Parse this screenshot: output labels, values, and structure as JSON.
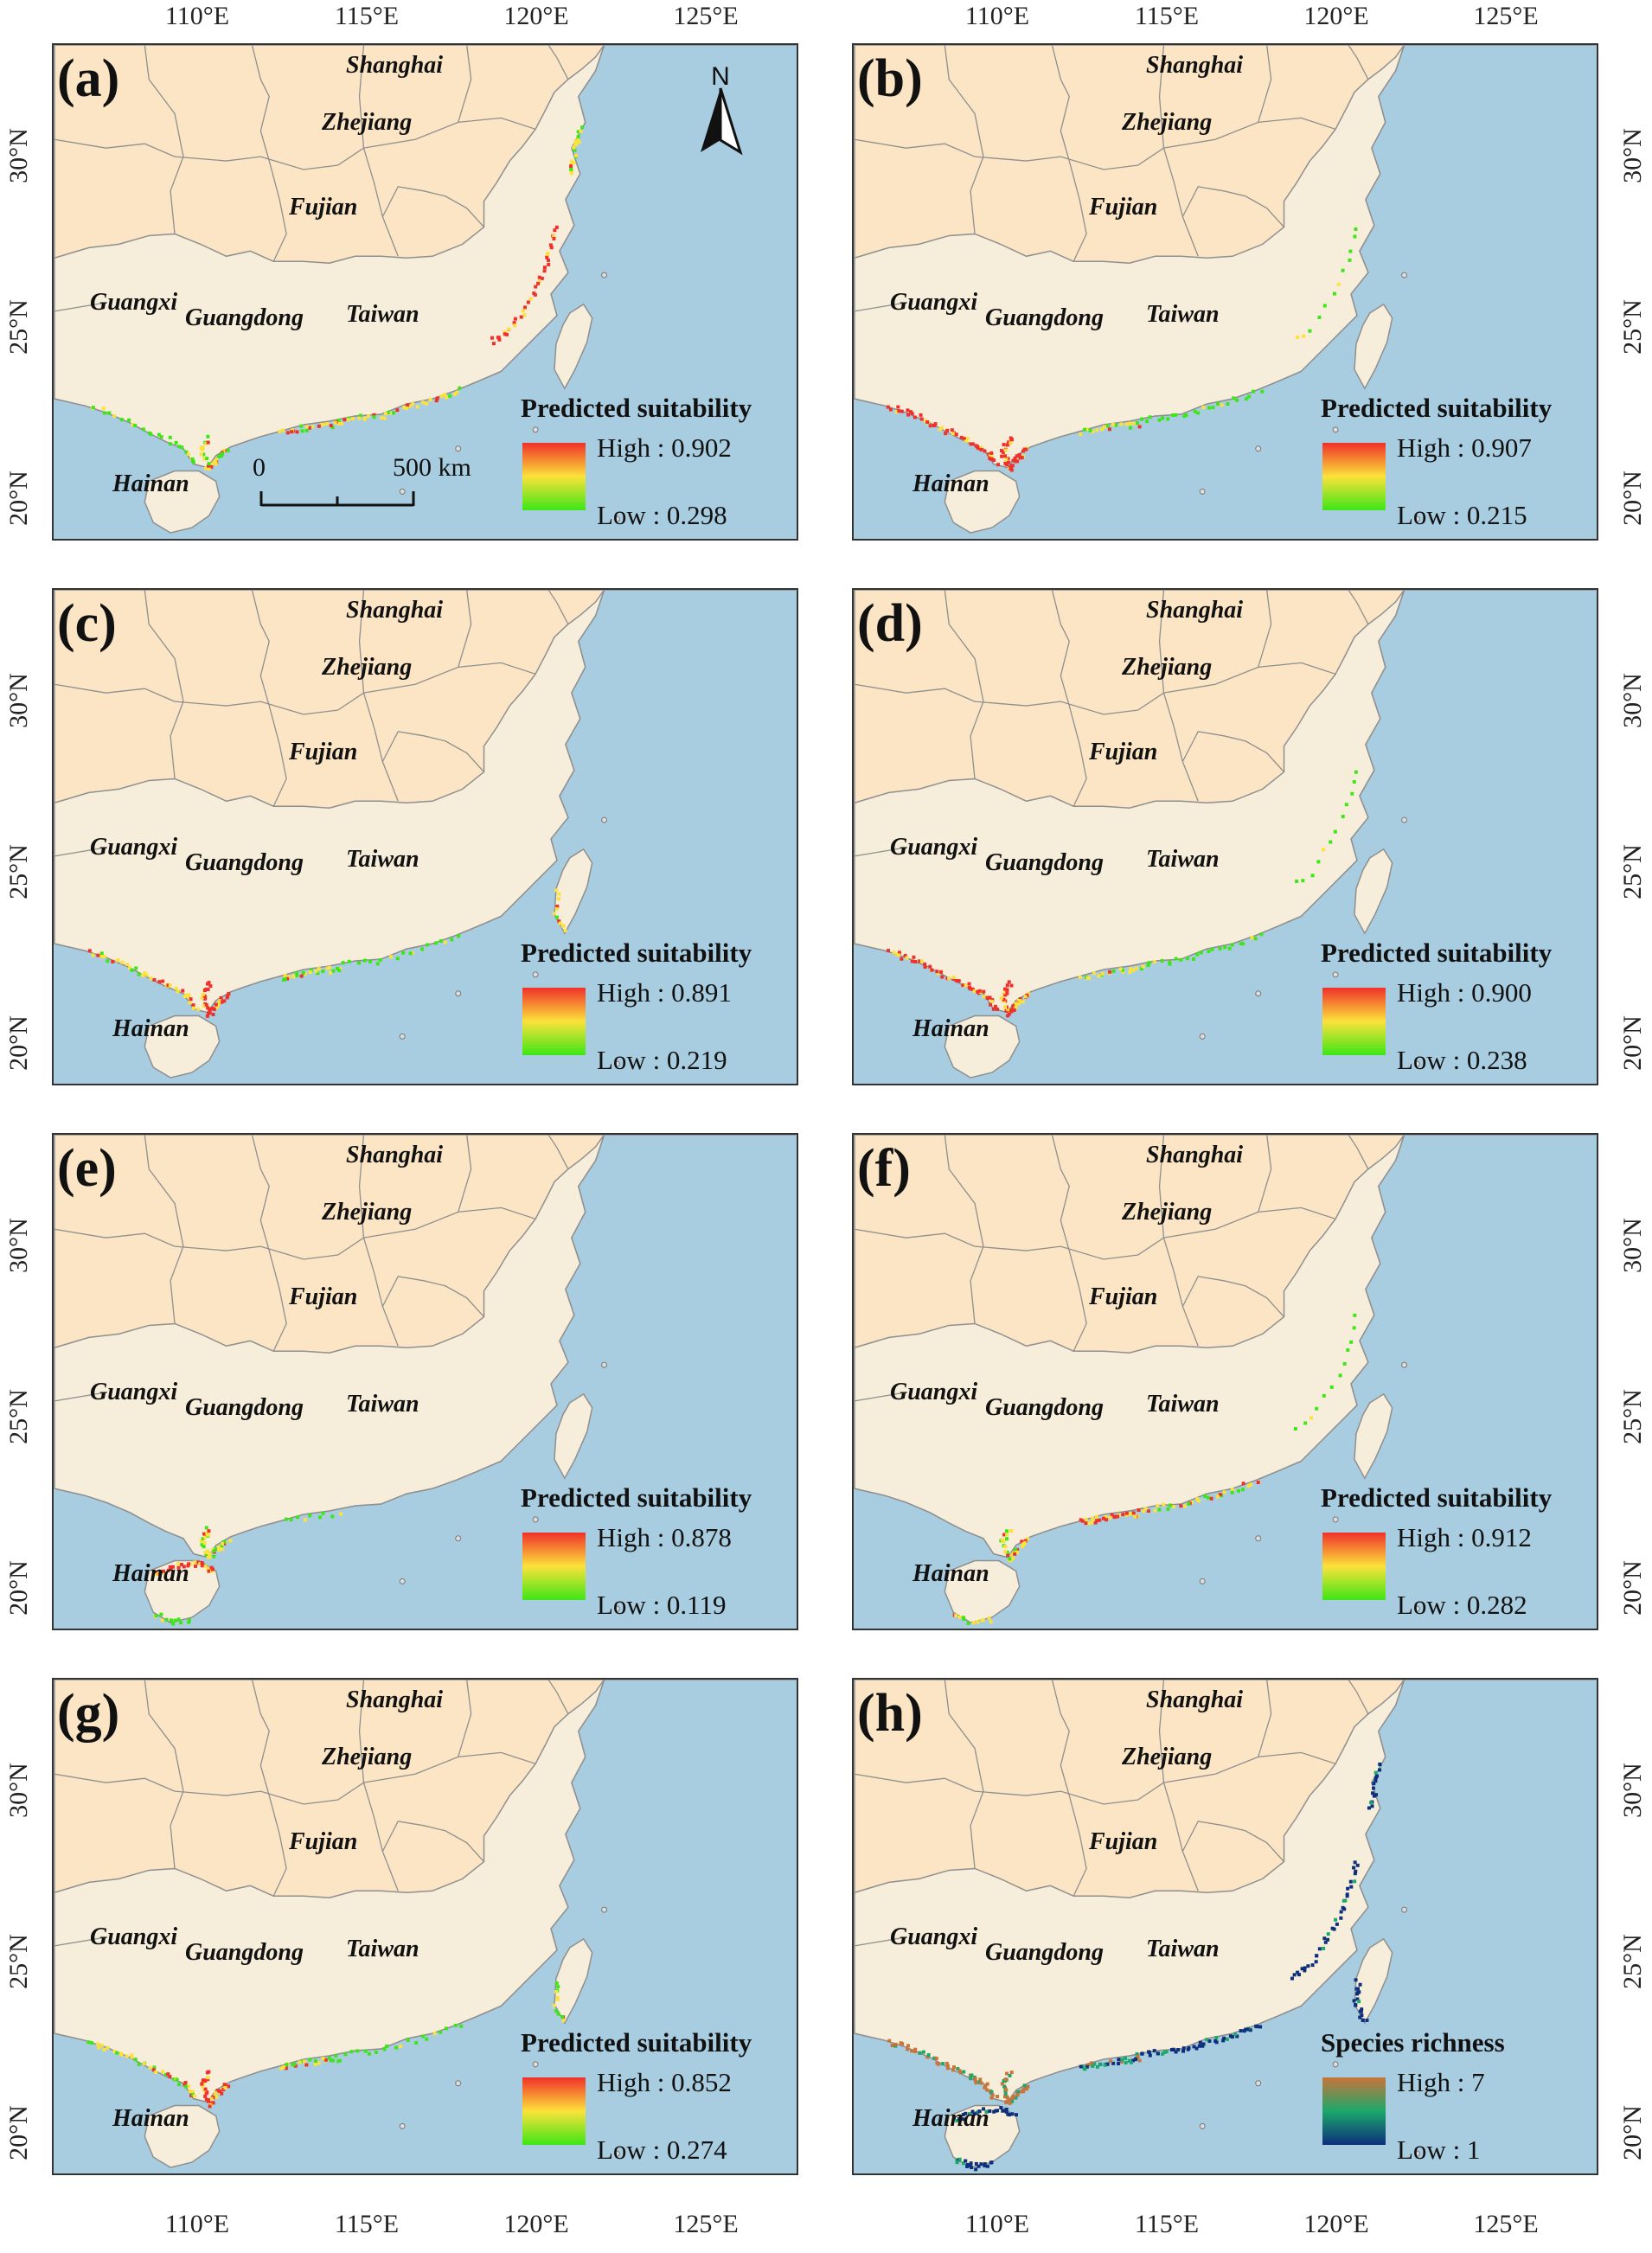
{
  "axes": {
    "lon_labels": [
      "110°E",
      "115°E",
      "120°E",
      "125°E"
    ],
    "lat_labels": [
      "30°N",
      "25°N",
      "20°N"
    ]
  },
  "colors": {
    "sea": "#a9cde0",
    "mainland": "#fbe5c4",
    "study_provinces": "#f6edda",
    "border": "#8f8f8f",
    "suitability_high": "#f0302a",
    "suitability_mid": "#fce23a",
    "suitability_low": "#3de616",
    "richness_high": "#c9743a",
    "richness_mid": "#1ca86a",
    "richness_low": "#0d2f7c"
  },
  "provinces": {
    "shanghai": "Shanghai",
    "zhejiang": "Zhejiang",
    "fujian": "Fujian",
    "taiwan": "Taiwan",
    "guangxi": "Guangxi",
    "guangdong": "Guangdong",
    "hainan": "Hainan"
  },
  "north_arrow": {
    "label": "N"
  },
  "scale_bar": {
    "start": "0",
    "end": "500 km"
  },
  "panels": [
    {
      "id": "a",
      "label": "(a)",
      "legend_title": "Predicted suitability",
      "high": "High : 0.902",
      "low": "Low : 0.298",
      "ramp": "suitability",
      "hotspot": "fujian"
    },
    {
      "id": "b",
      "label": "(b)",
      "legend_title": "Predicted suitability",
      "high": "High : 0.907",
      "low": "Low : 0.215",
      "ramp": "suitability",
      "hotspot": "beibu"
    },
    {
      "id": "c",
      "label": "(c)",
      "legend_title": "Predicted suitability",
      "high": "High : 0.891",
      "low": "Low : 0.219",
      "ramp": "suitability",
      "hotspot": "leizhou"
    },
    {
      "id": "d",
      "label": "(d)",
      "legend_title": "Predicted suitability",
      "high": "High : 0.900",
      "low": "Low : 0.238",
      "ramp": "suitability",
      "hotspot": "beibu"
    },
    {
      "id": "e",
      "label": "(e)",
      "legend_title": "Predicted suitability",
      "high": "High : 0.878",
      "low": "Low : 0.119",
      "ramp": "suitability",
      "hotspot": "hainan"
    },
    {
      "id": "f",
      "label": "(f)",
      "legend_title": "Predicted suitability",
      "high": "High : 0.912",
      "low": "Low : 0.282",
      "ramp": "suitability",
      "hotspot": "pearl"
    },
    {
      "id": "g",
      "label": "(g)",
      "legend_title": "Predicted suitability",
      "high": "High : 0.852",
      "low": "Low : 0.274",
      "ramp": "suitability",
      "hotspot": "leizhou"
    },
    {
      "id": "h",
      "label": "(h)",
      "legend_title": "Species richness",
      "high": "High : 7",
      "low": "Low : 1",
      "ramp": "richness",
      "hotspot": "all"
    }
  ]
}
